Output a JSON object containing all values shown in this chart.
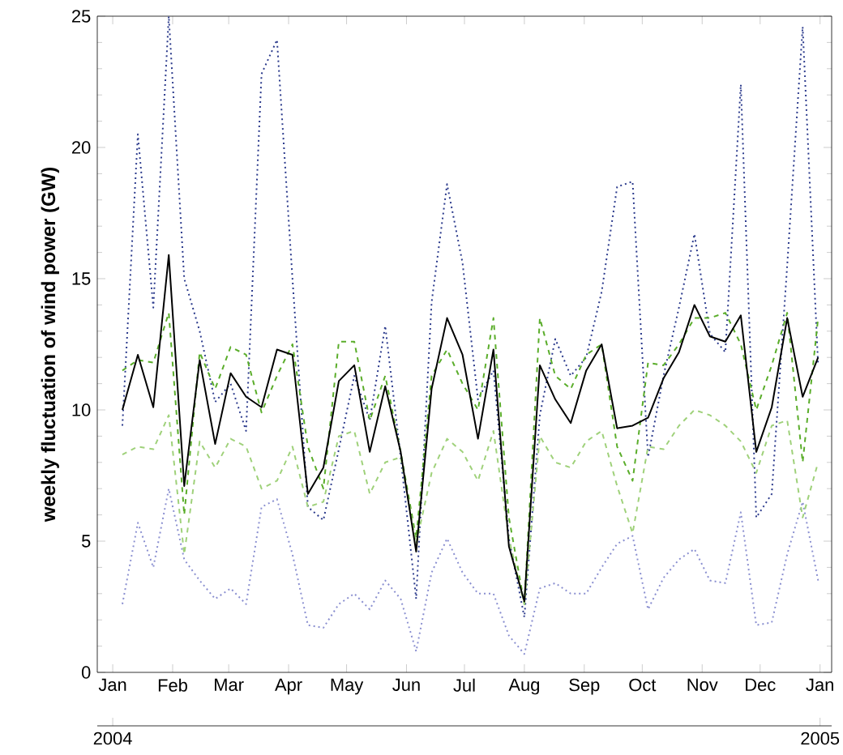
{
  "chart_data": {
    "type": "line",
    "ylabel": "weekly fluctuation of wind power (GW)",
    "xlim": [
      "2003-12-24",
      "2005-01-07"
    ],
    "ylim": [
      0,
      25
    ],
    "yticks": [
      0,
      5,
      10,
      15,
      20,
      25
    ],
    "xticks": [
      {
        "value": "2004-01-01",
        "label": "Jan"
      },
      {
        "value": "2004-02-01",
        "label": "Feb"
      },
      {
        "value": "2004-03-01",
        "label": "Mar"
      },
      {
        "value": "2004-04-01",
        "label": "Apr"
      },
      {
        "value": "2004-05-01",
        "label": "May"
      },
      {
        "value": "2004-06-01",
        "label": "Jun"
      },
      {
        "value": "2004-07-01",
        "label": "Jul"
      },
      {
        "value": "2004-08-01",
        "label": "Aug"
      },
      {
        "value": "2004-09-01",
        "label": "Sep"
      },
      {
        "value": "2004-10-01",
        "label": "Oct"
      },
      {
        "value": "2004-11-01",
        "label": "Nov"
      },
      {
        "value": "2004-12-01",
        "label": "Dec"
      },
      {
        "value": "2005-01-01",
        "label": "Jan"
      }
    ],
    "x2lim": [
      "2003-12-24",
      "2005-01-07"
    ],
    "x2ticks": [
      {
        "value": "2004-01-01",
        "label": "2004"
      },
      {
        "value": "2005-01-01",
        "label": "2005"
      }
    ],
    "x": [
      "2004-01-06",
      "2004-01-14",
      "2004-01-22",
      "2004-01-30",
      "2004-02-07",
      "2004-02-15",
      "2004-02-23",
      "2004-03-02",
      "2004-03-10",
      "2004-03-18",
      "2004-03-26",
      "2004-04-03",
      "2004-04-11",
      "2004-04-19",
      "2004-04-27",
      "2004-05-05",
      "2004-05-13",
      "2004-05-21",
      "2004-05-29",
      "2004-06-06",
      "2004-06-14",
      "2004-06-22",
      "2004-06-30",
      "2004-07-08",
      "2004-07-16",
      "2004-07-24",
      "2004-08-01",
      "2004-08-09",
      "2004-08-17",
      "2004-08-25",
      "2004-09-02",
      "2004-09-10",
      "2004-09-18",
      "2004-09-26",
      "2004-10-04",
      "2004-10-12",
      "2004-10-20",
      "2004-10-28",
      "2004-11-05",
      "2004-11-13",
      "2004-11-21",
      "2004-11-29",
      "2004-12-07",
      "2004-12-15",
      "2004-12-23",
      "2004-12-31"
    ],
    "series": [
      {
        "color": "#2b3a8c",
        "line_style": "dotted",
        "values": [
          9.4,
          20.5,
          13.9,
          25.0,
          15.0,
          13.0,
          10.3,
          11.0,
          9.2,
          22.8,
          24.1,
          15.0,
          6.3,
          5.8,
          8.5,
          11.3,
          9.6,
          13.2,
          8.2,
          2.8,
          14.1,
          18.6,
          15.6,
          10.4,
          11.5,
          5.1,
          2.1,
          9.8,
          12.7,
          11.3,
          12.0,
          14.5,
          18.5,
          18.7,
          8.2,
          11.3,
          13.9,
          16.7,
          12.9,
          12.2,
          22.4,
          5.9,
          6.8,
          15.5,
          24.6,
          11.7
        ]
      },
      {
        "color": "#8a8fd0",
        "line_style": "dotted",
        "values": [
          2.6,
          5.7,
          4.0,
          7.0,
          4.3,
          3.5,
          2.8,
          3.2,
          2.6,
          6.3,
          6.6,
          4.5,
          1.8,
          1.7,
          2.6,
          3.0,
          2.4,
          3.5,
          2.8,
          0.8,
          3.8,
          5.1,
          3.8,
          3.0,
          3.0,
          1.4,
          0.7,
          3.2,
          3.4,
          3.0,
          3.0,
          4.0,
          4.9,
          5.2,
          2.4,
          3.6,
          4.3,
          4.7,
          3.5,
          3.4,
          6.1,
          1.8,
          1.9,
          4.5,
          6.5,
          3.5
        ]
      },
      {
        "color": "#5aad2a",
        "line_style": "dashed",
        "values": [
          11.5,
          11.9,
          11.8,
          13.7,
          6.0,
          12.2,
          10.8,
          12.4,
          12.1,
          9.9,
          11.3,
          12.5,
          8.6,
          7.0,
          12.6,
          12.6,
          9.6,
          11.3,
          8.4,
          5.1,
          11.3,
          12.3,
          11.0,
          10.0,
          13.5,
          5.9,
          2.6,
          13.5,
          11.3,
          10.8,
          12.1,
          12.5,
          8.6,
          7.3,
          11.8,
          11.7,
          12.5,
          13.5,
          13.5,
          13.7,
          12.5,
          10.0,
          11.7,
          13.7,
          8.0,
          13.5
        ]
      },
      {
        "color": "#9fd17a",
        "line_style": "dashed",
        "values": [
          8.3,
          8.6,
          8.5,
          9.8,
          4.5,
          8.8,
          7.8,
          8.9,
          8.6,
          7.0,
          7.3,
          8.6,
          6.3,
          6.5,
          9.0,
          9.2,
          6.8,
          8.0,
          8.2,
          4.9,
          7.6,
          8.9,
          8.4,
          7.3,
          9.2,
          5.1,
          2.6,
          9.0,
          8.0,
          7.8,
          8.8,
          9.2,
          7.1,
          5.3,
          8.6,
          8.5,
          9.4,
          10.0,
          9.8,
          9.4,
          8.8,
          7.6,
          9.4,
          9.6,
          5.9,
          8.0
        ]
      },
      {
        "color": "#000000",
        "line_style": "solid",
        "values": [
          10.0,
          12.1,
          10.1,
          15.9,
          7.1,
          11.9,
          8.7,
          11.4,
          10.5,
          10.1,
          12.3,
          12.1,
          6.8,
          7.8,
          11.1,
          11.7,
          8.4,
          10.9,
          8.4,
          4.6,
          10.8,
          13.5,
          12.1,
          8.9,
          12.3,
          4.8,
          2.7,
          11.7,
          10.4,
          9.5,
          11.5,
          12.5,
          9.3,
          9.4,
          9.7,
          11.2,
          12.2,
          14.0,
          12.8,
          12.6,
          13.6,
          8.4,
          10.1,
          13.5,
          10.5,
          12.0
        ]
      }
    ]
  }
}
